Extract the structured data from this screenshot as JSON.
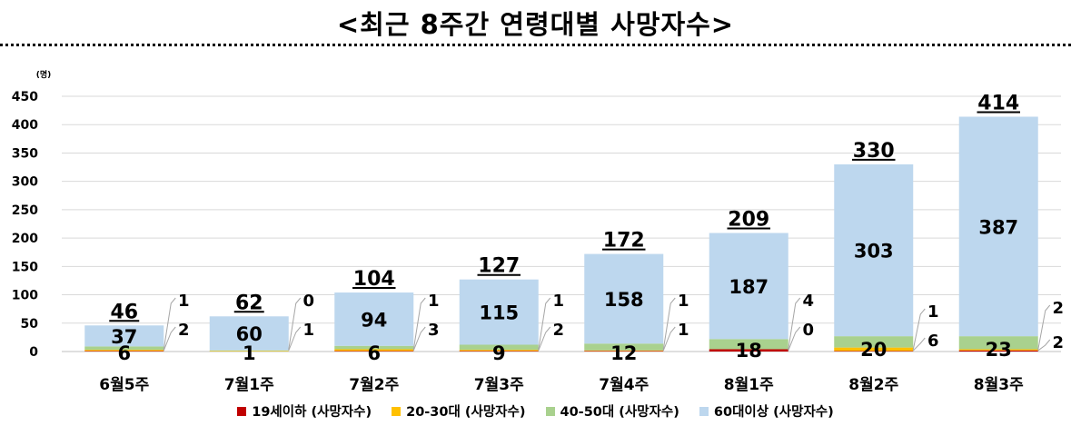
{
  "page": {
    "title": "<최근 8주간 연령대별 사망자수>"
  },
  "chart_data": {
    "type": "bar",
    "stacked": true,
    "title": "<최근 8주간 연령대별 사망자수>",
    "unit_label": "(명)",
    "ylim": [
      0,
      450
    ],
    "yticks": [
      0,
      50,
      100,
      150,
      200,
      250,
      300,
      350,
      400,
      450
    ],
    "grid": true,
    "legend_position": "bottom",
    "categories": [
      "6월5주",
      "7월1주",
      "7월2주",
      "7월3주",
      "7월4주",
      "8월1주",
      "8월2주",
      "8월3주"
    ],
    "series": [
      {
        "name": "19세이하 (사망자수)",
        "color": "#c00000",
        "values": [
          1,
          0,
          1,
          1,
          1,
          4,
          1,
          2
        ]
      },
      {
        "name": "20-30대 (사망자수)",
        "color": "#ffc000",
        "values": [
          2,
          1,
          3,
          2,
          1,
          0,
          6,
          2
        ]
      },
      {
        "name": "40-50대 (사망자수)",
        "color": "#a9d18e",
        "values": [
          6,
          1,
          6,
          9,
          12,
          18,
          20,
          23
        ]
      },
      {
        "name": "60대이상 (사망자수)",
        "color": "#bdd7ee",
        "values": [
          37,
          60,
          94,
          115,
          158,
          187,
          303,
          387
        ]
      }
    ],
    "totals": [
      46,
      62,
      104,
      127,
      172,
      209,
      330,
      414
    ]
  }
}
